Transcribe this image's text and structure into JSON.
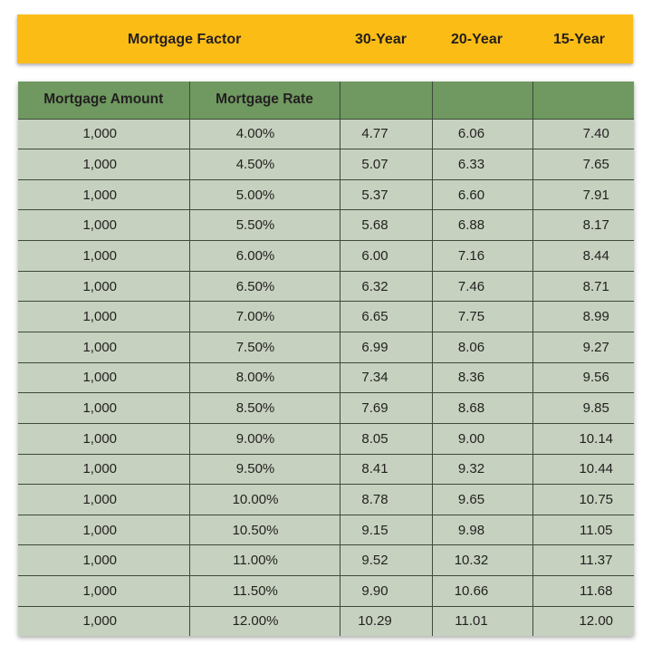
{
  "banner": {
    "title": "Mortgage Factor",
    "col_30": "30-Year",
    "col_20": "20-Year",
    "col_15": "15-Year",
    "color": "#fbbc16"
  },
  "table": {
    "header_color": "#6f9960",
    "body_color": "#c6d2bf",
    "headers": [
      "Mortgage Amount",
      "Mortgage Rate",
      "",
      "",
      ""
    ],
    "rows": [
      [
        "1,000",
        "4.00%",
        "4.77",
        "6.06",
        "7.40"
      ],
      [
        "1,000",
        "4.50%",
        "5.07",
        "6.33",
        "7.65"
      ],
      [
        "1,000",
        "5.00%",
        "5.37",
        "6.60",
        "7.91"
      ],
      [
        "1,000",
        "5.50%",
        "5.68",
        "6.88",
        "8.17"
      ],
      [
        "1,000",
        "6.00%",
        "6.00",
        "7.16",
        "8.44"
      ],
      [
        "1,000",
        "6.50%",
        "6.32",
        "7.46",
        "8.71"
      ],
      [
        "1,000",
        "7.00%",
        "6.65",
        "7.75",
        "8.99"
      ],
      [
        "1,000",
        "7.50%",
        "6.99",
        "8.06",
        "9.27"
      ],
      [
        "1,000",
        "8.00%",
        "7.34",
        "8.36",
        "9.56"
      ],
      [
        "1,000",
        "8.50%",
        "7.69",
        "8.68",
        "9.85"
      ],
      [
        "1,000",
        "9.00%",
        "8.05",
        "9.00",
        "10.14"
      ],
      [
        "1,000",
        "9.50%",
        "8.41",
        "9.32",
        "10.44"
      ],
      [
        "1,000",
        "10.00%",
        "8.78",
        "9.65",
        "10.75"
      ],
      [
        "1,000",
        "10.50%",
        "9.15",
        "9.98",
        "11.05"
      ],
      [
        "1,000",
        "11.00%",
        "9.52",
        "10.32",
        "11.37"
      ],
      [
        "1,000",
        "11.50%",
        "9.90",
        "10.66",
        "11.68"
      ],
      [
        "1,000",
        "12.00%",
        "10.29",
        "11.01",
        "12.00"
      ]
    ]
  }
}
